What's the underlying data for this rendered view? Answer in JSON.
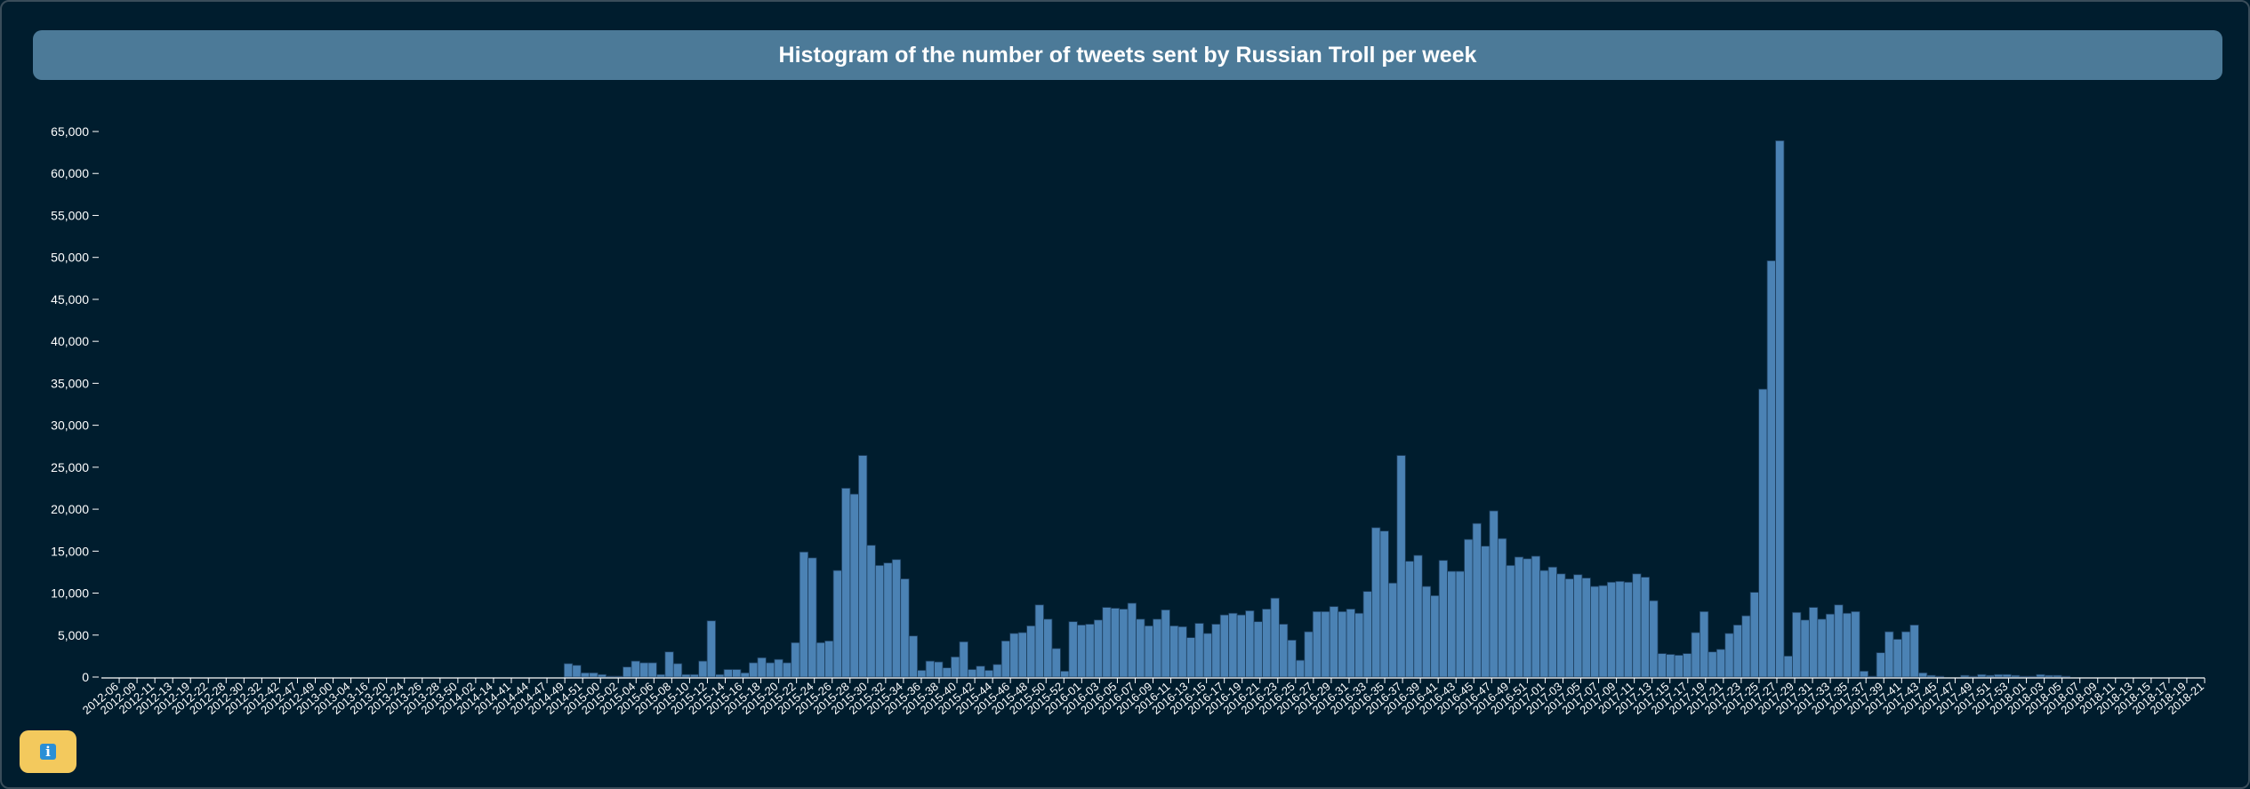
{
  "info_button": {
    "icon": "info-icon",
    "glyph": "i"
  },
  "colors": {
    "background": "#001d2e",
    "title_bar": "#4c7a98",
    "bar": "#4b82b4",
    "bar_stroke": "#1c3d5c",
    "axis": "#ffffff",
    "info_button": "#f3c95d"
  },
  "chart_data": {
    "type": "bar",
    "title": "Histogram of the number of tweets sent by Russian Troll per week",
    "xlabel": "",
    "ylabel": "",
    "ylim": [
      0,
      65000
    ],
    "ytick_step": 5000,
    "grid": false,
    "x_tick_labels": [
      "2012-06",
      "2012-09",
      "2012-11",
      "2012-13",
      "2012-19",
      "2012-22",
      "2012-28",
      "2012-30",
      "2012-32",
      "2012-42",
      "2012-47",
      "2012-49",
      "2013-00",
      "2013-04",
      "2013-16",
      "2013-20",
      "2013-24",
      "2013-26",
      "2013-28",
      "2013-50",
      "2014-02",
      "2014-14",
      "2014-41",
      "2014-44",
      "2014-47",
      "2014-49",
      "2014-51",
      "2015-00",
      "2015-02",
      "2015-04",
      "2015-06",
      "2015-08",
      "2015-10",
      "2015-12",
      "2015-14",
      "2015-16",
      "2015-18",
      "2015-20",
      "2015-22",
      "2015-24",
      "2015-26",
      "2015-28",
      "2015-30",
      "2015-32",
      "2015-34",
      "2015-36",
      "2015-38",
      "2015-40",
      "2015-42",
      "2015-44",
      "2015-46",
      "2015-48",
      "2015-50",
      "2015-52",
      "2016-01",
      "2016-03",
      "2016-05",
      "2016-07",
      "2016-09",
      "2016-11",
      "2016-13",
      "2016-15",
      "2016-17",
      "2016-19",
      "2016-21",
      "2016-23",
      "2016-25",
      "2016-27",
      "2016-29",
      "2016-31",
      "2016-33",
      "2016-35",
      "2016-37",
      "2016-39",
      "2016-41",
      "2016-43",
      "2016-45",
      "2016-47",
      "2016-49",
      "2016-51",
      "2017-01",
      "2017-03",
      "2017-05",
      "2017-07",
      "2017-09",
      "2017-11",
      "2017-13",
      "2017-15",
      "2017-17",
      "2017-19",
      "2017-21",
      "2017-23",
      "2017-25",
      "2017-27",
      "2017-29",
      "2017-31",
      "2017-33",
      "2017-35",
      "2017-37",
      "2017-39",
      "2017-41",
      "2017-43",
      "2017-45",
      "2017-47",
      "2017-49",
      "2017-51",
      "2017-53",
      "2018-01",
      "2018-03",
      "2018-05",
      "2018-07",
      "2018-09",
      "2018-11",
      "2018-13",
      "2018-15",
      "2018-17",
      "2018-19",
      "2018-21"
    ],
    "values": [
      0,
      0,
      0,
      0,
      0,
      0,
      0,
      0,
      0,
      0,
      0,
      0,
      0,
      0,
      0,
      0,
      0,
      0,
      0,
      0,
      0,
      0,
      0,
      0,
      0,
      0,
      0,
      0,
      0,
      0,
      0,
      0,
      0,
      0,
      0,
      0,
      0,
      0,
      0,
      0,
      0,
      0,
      0,
      0,
      0,
      0,
      0,
      0,
      0,
      0,
      0,
      0,
      0,
      0,
      0,
      1600,
      1400,
      500,
      500,
      300,
      100,
      100,
      1200,
      1900,
      1700,
      1700,
      300,
      3000,
      1600,
      300,
      300,
      1900,
      6700,
      300,
      900,
      900,
      500,
      1700,
      2300,
      1700,
      2100,
      1700,
      4100,
      14900,
      14200,
      4100,
      4300,
      12700,
      22500,
      21800,
      26400,
      15700,
      13300,
      13600,
      14000,
      11700,
      4900,
      800,
      1900,
      1800,
      1100,
      2400,
      4200,
      900,
      1300,
      800,
      1500,
      4300,
      5200,
      5300,
      6100,
      8600,
      6900,
      3400,
      700,
      6600,
      6200,
      6300,
      6800,
      8300,
      8200,
      8100,
      8800,
      6900,
      6100,
      6900,
      8000,
      6100,
      6000,
      4700,
      6400,
      5200,
      6300,
      7400,
      7600,
      7400,
      7900,
      6600,
      8100,
      9400,
      6300,
      4400,
      2000,
      5400,
      7800,
      7800,
      8400,
      7800,
      8100,
      7600,
      10200,
      17800,
      17400,
      11200,
      26400,
      13800,
      14500,
      10800,
      9700,
      13900,
      12600,
      12600,
      16400,
      18300,
      15600,
      19800,
      16500,
      13300,
      14300,
      14100,
      14400,
      12700,
      13100,
      12300,
      11700,
      12200,
      11800,
      10800,
      10900,
      11300,
      11400,
      11300,
      12300,
      11900,
      9100,
      2800,
      2700,
      2600,
      2800,
      5300,
      7800,
      3000,
      3300,
      5200,
      6200,
      7300,
      10100,
      34300,
      49600,
      63900,
      2500,
      7700,
      6800,
      8300,
      6900,
      7500,
      8600,
      7600,
      7800,
      700,
      100,
      2900,
      5400,
      4500,
      5400,
      6200,
      500,
      200,
      100,
      0,
      0,
      200,
      100,
      300,
      200,
      300,
      300,
      200,
      100,
      100,
      300,
      200,
      200,
      100,
      0,
      0,
      0,
      0,
      0,
      0,
      0,
      0,
      0,
      0,
      0,
      0,
      0,
      0,
      0,
      0
    ]
  }
}
